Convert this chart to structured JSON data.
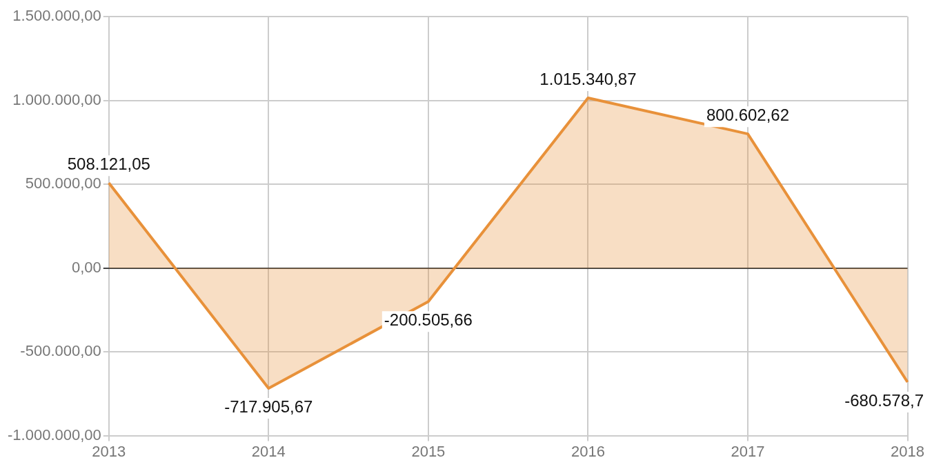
{
  "chart_data": {
    "type": "area",
    "categories": [
      "2013",
      "2014",
      "2015",
      "2016",
      "2017",
      "2018"
    ],
    "series": [
      {
        "color": "#e8913a",
        "values": [
          508121.05,
          -717905.67,
          -200505.66,
          1015340.87,
          800602.62,
          -680578.7
        ],
        "value_labels": [
          "508.121,05",
          "-717.905,67",
          "-200.505,66",
          "1.015.340,87",
          "800.602,62",
          "-680.578,7"
        ]
      }
    ],
    "ylim": [
      -1000000,
      1500000
    ],
    "yticks": [
      {
        "value": -1000000,
        "label": "-1.000.000,00"
      },
      {
        "value": -500000,
        "label": "-500.000,00"
      },
      {
        "value": 0,
        "label": "0,00"
      },
      {
        "value": 500000,
        "label": "500.000,00"
      },
      {
        "value": 1000000,
        "label": "1.000.000,00"
      },
      {
        "value": 1500000,
        "label": "1.500.000,00"
      }
    ],
    "grid": true,
    "marker": "none"
  }
}
